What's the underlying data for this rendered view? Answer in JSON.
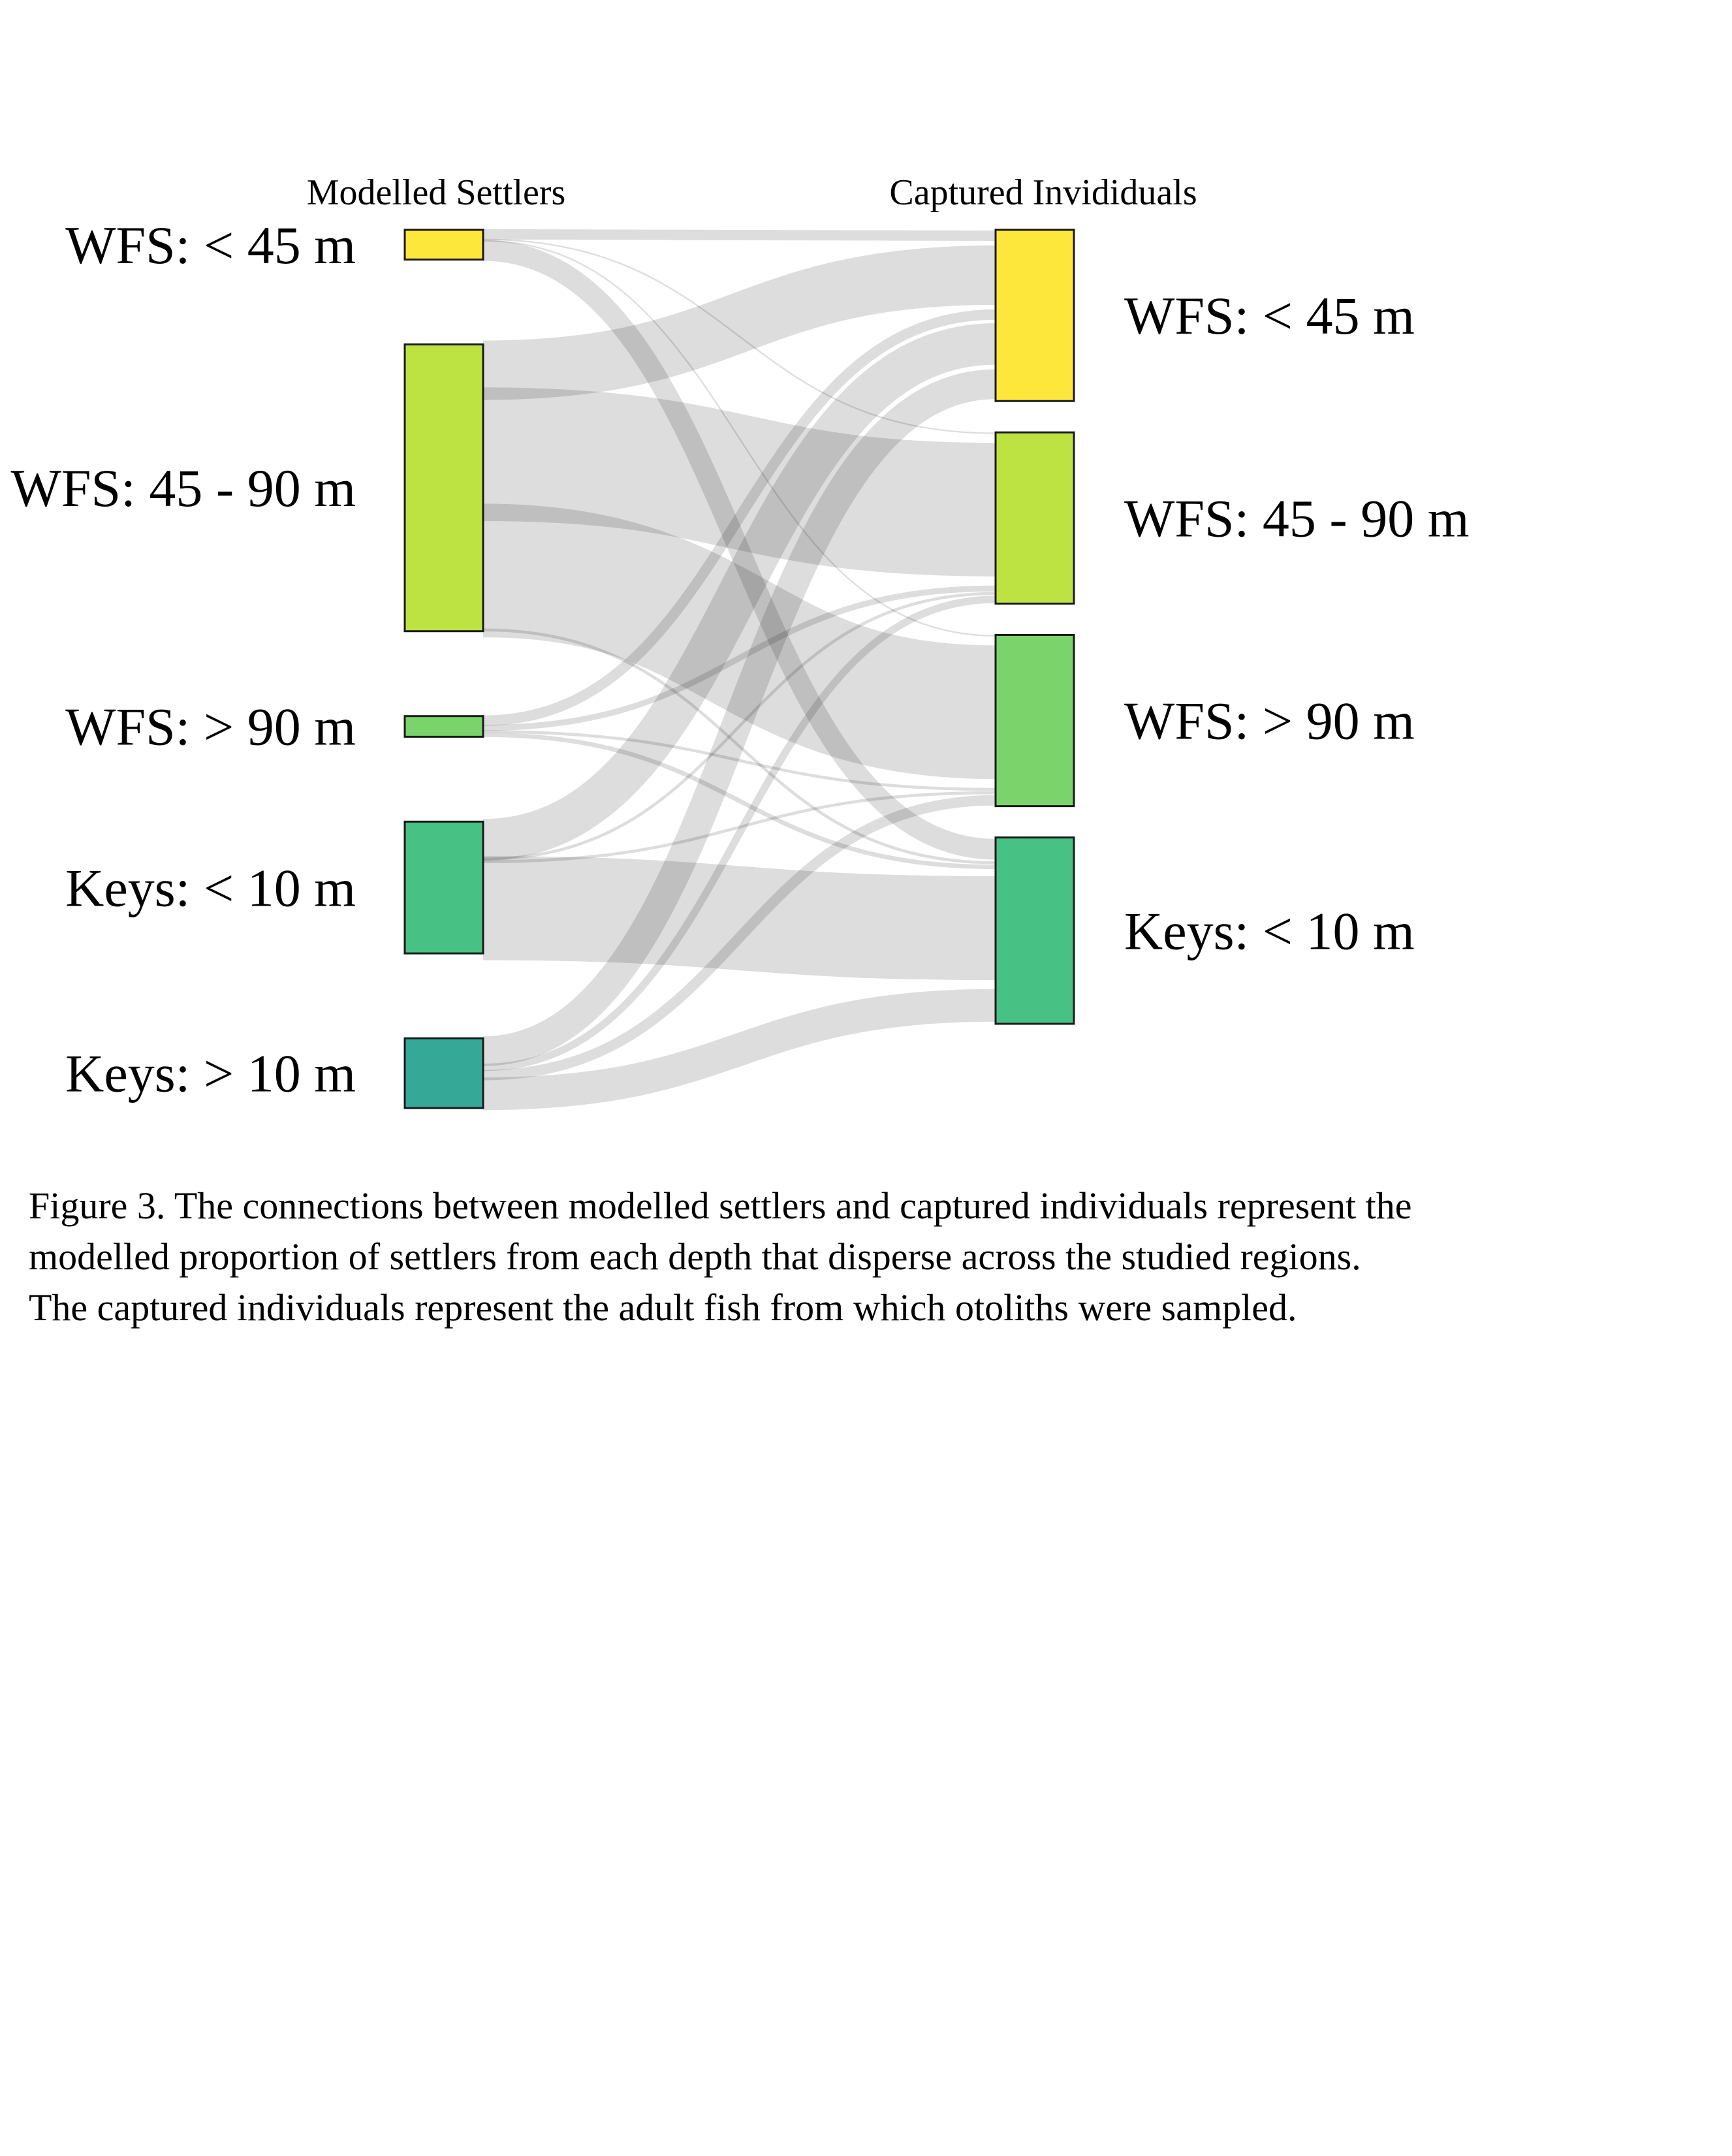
{
  "diagram": {
    "type": "sankey",
    "left_title": "Modelled Settlers",
    "right_title": "Captured Invididuals",
    "link_color": "#a6a6a6",
    "left_nodes": [
      {
        "id": "s_wfs_lt45",
        "label": "WFS: < 45 m",
        "color": "#fde73a"
      },
      {
        "id": "s_wfs_45_90",
        "label": "WFS: 45 - 90 m",
        "color": "#bde343"
      },
      {
        "id": "s_wfs_gt90",
        "label": "WFS: > 90 m",
        "color": "#7bd36b"
      },
      {
        "id": "s_keys_lt10",
        "label": "Keys: < 10 m",
        "color": "#48c184"
      },
      {
        "id": "s_keys_gt10",
        "label": "Keys: > 10 m",
        "color": "#36a897"
      }
    ],
    "right_nodes": [
      {
        "id": "c_wfs_lt45",
        "label": "WFS: < 45 m",
        "color": "#fde73a"
      },
      {
        "id": "c_wfs_45_90",
        "label": "WFS: 45 - 90 m",
        "color": "#bde343"
      },
      {
        "id": "c_wfs_gt90",
        "label": "WFS: > 90 m",
        "color": "#7bd36b"
      },
      {
        "id": "c_keys_lt10",
        "label": "Keys: < 10 m",
        "color": "#48c184"
      }
    ],
    "links": [
      {
        "source": "s_wfs_lt45",
        "target": "c_wfs_lt45",
        "value": 0.7
      },
      {
        "source": "s_wfs_lt45",
        "target": "c_wfs_45_90",
        "value": 0.1
      },
      {
        "source": "s_wfs_lt45",
        "target": "c_wfs_gt90",
        "value": 0.1
      },
      {
        "source": "s_wfs_lt45",
        "target": "c_keys_lt10",
        "value": 1.4
      },
      {
        "source": "s_wfs_45_90",
        "target": "c_wfs_lt45",
        "value": 4.0
      },
      {
        "source": "s_wfs_45_90",
        "target": "c_wfs_45_90",
        "value": 9.0
      },
      {
        "source": "s_wfs_45_90",
        "target": "c_wfs_gt90",
        "value": 9.0
      },
      {
        "source": "s_wfs_45_90",
        "target": "c_keys_lt10",
        "value": 0.2
      },
      {
        "source": "s_wfs_gt90",
        "target": "c_wfs_lt45",
        "value": 0.7
      },
      {
        "source": "s_wfs_gt90",
        "target": "c_wfs_45_90",
        "value": 0.4
      },
      {
        "source": "s_wfs_gt90",
        "target": "c_wfs_gt90",
        "value": 0.2
      },
      {
        "source": "s_wfs_gt90",
        "target": "c_keys_lt10",
        "value": 0.3
      },
      {
        "source": "s_keys_lt10",
        "target": "c_wfs_lt45",
        "value": 2.8
      },
      {
        "source": "s_keys_lt10",
        "target": "c_wfs_45_90",
        "value": 0.2
      },
      {
        "source": "s_keys_lt10",
        "target": "c_wfs_gt90",
        "value": 0.2
      },
      {
        "source": "s_keys_lt10",
        "target": "c_keys_lt10",
        "value": 7.0
      },
      {
        "source": "s_keys_gt10",
        "target": "c_wfs_lt45",
        "value": 2.0
      },
      {
        "source": "s_keys_gt10",
        "target": "c_wfs_45_90",
        "value": 0.5
      },
      {
        "source": "s_keys_gt10",
        "target": "c_wfs_gt90",
        "value": 0.7
      },
      {
        "source": "s_keys_gt10",
        "target": "c_keys_lt10",
        "value": 2.2
      }
    ]
  },
  "caption": {
    "line1": "Figure 3. The connections between modelled settlers and captured individuals represent the",
    "line2": "modelled proportion of settlers from each depth that disperse across the studied regions.",
    "line3": "The captured individuals represent the adult fish from which otoliths were sampled."
  }
}
